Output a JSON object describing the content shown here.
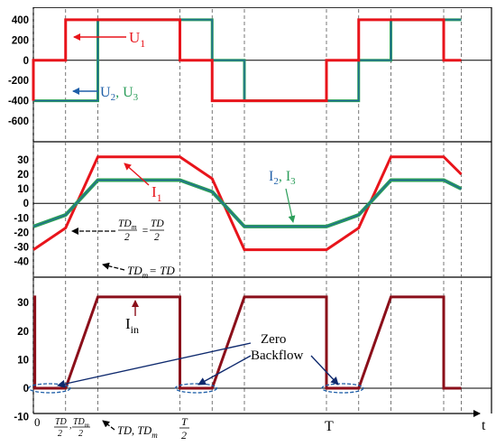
{
  "chart_data": [
    {
      "type": "line",
      "title": "",
      "xlabel": "",
      "ylabel": "",
      "ylim": [
        -600,
        400
      ],
      "yticks": [
        "400",
        "200",
        "0",
        "-200",
        "-400",
        "-600"
      ],
      "x_units": "fraction of switching period T",
      "grid": "dashed vertical lines at switching instants",
      "series": [
        {
          "name": "U1",
          "color": "#e8141b",
          "x": [
            0,
            0,
            0.11,
            0.11,
            0.5,
            0.5,
            0.61,
            0.61,
            1.0,
            1.0,
            1.11,
            1.11,
            1.4,
            1.4,
            1.46
          ],
          "y": [
            -400,
            0,
            0,
            400,
            400,
            0,
            0,
            -400,
            -400,
            0,
            0,
            400,
            400,
            0,
            0
          ]
        },
        {
          "name": "U2, U3",
          "color": "#2a9d59",
          "x": [
            0,
            0.22,
            0.22,
            0.61,
            0.61,
            0.72,
            0.72,
            1.11,
            1.11,
            1.22,
            1.22,
            1.46
          ],
          "y": [
            -400,
            -400,
            400,
            400,
            0,
            0,
            -400,
            -400,
            0,
            0,
            400,
            400
          ]
        }
      ],
      "annotations": [
        {
          "text": "U",
          "sub": "1",
          "color": "#e8141b"
        },
        {
          "text": "U",
          "sub": "2",
          "text2": ", U",
          "sub2": "3",
          "color": "#1f5fa8",
          "color2": "#2a9d59"
        }
      ]
    },
    {
      "type": "line",
      "title": "",
      "xlabel": "",
      "ylabel": "",
      "ylim": [
        -40,
        30
      ],
      "yticks": [
        "30",
        "20",
        "10",
        "0",
        "-10",
        "-20",
        "-30",
        "-40"
      ],
      "series": [
        {
          "name": "I1",
          "color": "#e8141b",
          "x": [
            0,
            0.11,
            0.22,
            0.5,
            0.61,
            0.72,
            1.0,
            1.11,
            1.22,
            1.4,
            1.46
          ],
          "y": [
            -32,
            -17,
            32,
            32,
            17,
            -32,
            -32,
            -17,
            32,
            32,
            20
          ]
        },
        {
          "name": "I2, I3",
          "color": "#2a9d59",
          "x": [
            0,
            0.11,
            0.22,
            0.5,
            0.61,
            0.72,
            1.0,
            1.11,
            1.22,
            1.4,
            1.46
          ],
          "y": [
            -16,
            -8,
            16,
            16,
            8,
            -16,
            -16,
            -8,
            16,
            16,
            10
          ]
        }
      ],
      "annotations": [
        {
          "text": "I",
          "sub": "1",
          "color": "#e8141b"
        },
        {
          "text": "I",
          "sub": "2",
          "text2": ", I",
          "sub2": "3",
          "color": "#1f5fa8",
          "color2": "#2a9d59"
        },
        {
          "text": "TDm/2 = TD/2"
        },
        {
          "text": "TDm = TD"
        }
      ]
    },
    {
      "type": "line",
      "title": "",
      "xlabel": "t",
      "ylabel": "",
      "ylim": [
        -10,
        30
      ],
      "yticks": [
        "30",
        "20",
        "10",
        "0",
        "-10"
      ],
      "xticks": [
        "0",
        "TD/2, TDm/2",
        "TD, TDm",
        "T/2",
        "T"
      ],
      "series": [
        {
          "name": "Iin",
          "color": "#8b0f1a",
          "x": [
            0,
            0.005,
            0.005,
            0.11,
            0.22,
            0.5,
            0.5,
            0.61,
            0.72,
            1.0,
            1.0,
            1.11,
            1.22,
            1.4,
            1.4,
            1.46
          ],
          "y": [
            32,
            32,
            0,
            0,
            32,
            32,
            0,
            0,
            32,
            32,
            0,
            0,
            32,
            32,
            0,
            0
          ]
        }
      ],
      "annotations": [
        {
          "text": "I",
          "sub": "in"
        },
        {
          "text": "Zero"
        },
        {
          "text": "Backflow"
        }
      ]
    }
  ],
  "labels": {
    "u1": {
      "main": "U",
      "sub": "1"
    },
    "u23": {
      "a": "U",
      "as": "2",
      "b": ", U",
      "bs": "3"
    },
    "i1": {
      "main": "I",
      "sub": "1"
    },
    "i23": {
      "a": "I",
      "as": "2",
      "b": ", I",
      "bs": "3"
    },
    "tdm_half": {
      "left_num": "TD",
      "left_num_sub": "m",
      "den": "2",
      "eq": "=",
      "right_num": "TD"
    },
    "tdm_eq": {
      "a": "TD",
      "sub": "m",
      "b": "= TD"
    },
    "iin": {
      "main": "I",
      "sub": "in"
    },
    "zero": "Zero",
    "backflow": "Backflow",
    "xt0": "0",
    "xt_td2": {
      "num": "TD",
      "den": "2",
      "comma": ",",
      "num2": "TD",
      "num2sub": "m",
      "den2": "2"
    },
    "xt_td": {
      "a": "TD, TD",
      "sub": "m"
    },
    "xt_half": {
      "num": "T",
      "den": "2"
    },
    "xt_T": "T",
    "t_axis": "t"
  },
  "colors": {
    "red": "#e8141b",
    "green": "#2a9d59",
    "blue": "#1f5fa8",
    "dark": "#8b0f1a",
    "navy": "#0f2a6e"
  }
}
